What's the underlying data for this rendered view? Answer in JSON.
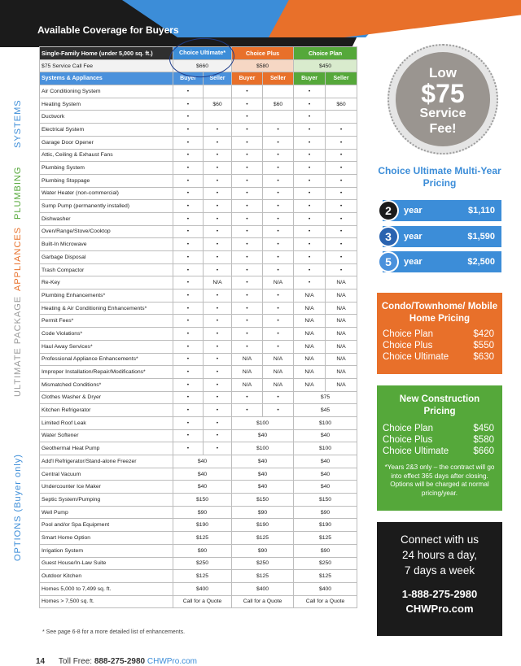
{
  "header": {
    "title": "Available Coverage for Buyers"
  },
  "side_labels": [
    "SYSTEMS",
    "PLUMBING",
    "APPLIANCES",
    "ULTIMATE PACKAGE",
    "OPTIONS (Buyer only)"
  ],
  "table": {
    "title_cell": "Single-Family Home (under 5,000 sq. ft.)",
    "plans": [
      "Choice Ultimate*",
      "Choice Plus",
      "Choice Plan"
    ],
    "fee_label": "$75 Service Call Fee",
    "fees": [
      "$660",
      "$580",
      "$450"
    ],
    "section_label": "Systems & Appliances",
    "col_headers": [
      "Buyer",
      "Seller",
      "Buyer",
      "Seller",
      "Buyer",
      "Seller"
    ],
    "rows": [
      {
        "label": "Air Conditioning System",
        "c": [
          "•",
          "",
          "•",
          "",
          "•",
          ""
        ]
      },
      {
        "label": "Heating System",
        "c": [
          "•",
          "$60",
          "•",
          "$60",
          "•",
          "$60"
        ]
      },
      {
        "label": "Ductwork",
        "c": [
          "•",
          "",
          "•",
          "",
          "•",
          ""
        ]
      },
      {
        "label": "Electrical System",
        "c": [
          "•",
          "•",
          "•",
          "•",
          "•",
          "•"
        ]
      },
      {
        "label": "Garage Door Opener",
        "c": [
          "•",
          "•",
          "•",
          "•",
          "•",
          "•"
        ]
      },
      {
        "label": "Attic, Ceiling & Exhaust Fans",
        "c": [
          "•",
          "•",
          "•",
          "•",
          "•",
          "•"
        ]
      },
      {
        "label": "Plumbing System",
        "c": [
          "•",
          "•",
          "•",
          "•",
          "•",
          "•"
        ]
      },
      {
        "label": "Plumbing Stoppage",
        "c": [
          "•",
          "•",
          "•",
          "•",
          "•",
          "•"
        ]
      },
      {
        "label": "Water Heater (non-commercial)",
        "c": [
          "•",
          "•",
          "•",
          "•",
          "•",
          "•"
        ]
      },
      {
        "label": "Sump Pump (permanently installed)",
        "c": [
          "•",
          "•",
          "•",
          "•",
          "•",
          "•"
        ]
      },
      {
        "label": "Dishwasher",
        "c": [
          "•",
          "•",
          "•",
          "•",
          "•",
          "•"
        ]
      },
      {
        "label": "Oven/Range/Stove/Cooktop",
        "c": [
          "•",
          "•",
          "•",
          "•",
          "•",
          "•"
        ]
      },
      {
        "label": "Built-In Microwave",
        "c": [
          "•",
          "•",
          "•",
          "•",
          "•",
          "•"
        ]
      },
      {
        "label": "Garbage Disposal",
        "c": [
          "•",
          "•",
          "•",
          "•",
          "•",
          "•"
        ]
      },
      {
        "label": "Trash Compactor",
        "c": [
          "•",
          "•",
          "•",
          "•",
          "•",
          "•"
        ]
      },
      {
        "label": "Re-Key",
        "c": [
          "•",
          "N/A",
          "•",
          "N/A",
          "•",
          "N/A"
        ]
      },
      {
        "label": "Plumbing Enhancements*",
        "c": [
          "•",
          "•",
          "•",
          "•",
          "N/A",
          "N/A"
        ]
      },
      {
        "label": "Heating & Air Conditioning Enhancements*",
        "c": [
          "•",
          "•",
          "•",
          "•",
          "N/A",
          "N/A"
        ]
      },
      {
        "label": "Permit Fees*",
        "c": [
          "•",
          "•",
          "•",
          "•",
          "N/A",
          "N/A"
        ]
      },
      {
        "label": "Code Violations*",
        "c": [
          "•",
          "•",
          "•",
          "•",
          "N/A",
          "N/A"
        ]
      },
      {
        "label": "Haul Away Services*",
        "c": [
          "•",
          "•",
          "•",
          "•",
          "N/A",
          "N/A"
        ]
      },
      {
        "label": "Professional Appliance Enhancements*",
        "c": [
          "•",
          "•",
          "N/A",
          "N/A",
          "N/A",
          "N/A"
        ]
      },
      {
        "label": "Improper Installation/Repair/Modifications*",
        "c": [
          "•",
          "•",
          "N/A",
          "N/A",
          "N/A",
          "N/A"
        ]
      },
      {
        "label": "Mismatched Conditions*",
        "c": [
          "•",
          "•",
          "N/A",
          "N/A",
          "N/A",
          "N/A"
        ]
      }
    ],
    "option_rows": [
      {
        "label": "Clothes Washer & Dryer",
        "u": [
          "•",
          "•"
        ],
        "p": [
          "•",
          "•"
        ],
        "c": "$75"
      },
      {
        "label": "Kitchen Refrigerator",
        "u": [
          "•",
          "•"
        ],
        "p": [
          "•",
          "•"
        ],
        "c": "$45"
      },
      {
        "label": "Limited Roof Leak",
        "u": [
          "•",
          "•"
        ],
        "p": "$100",
        "c": "$100"
      },
      {
        "label": "Water Softener",
        "u": [
          "•",
          "•"
        ],
        "p": "$40",
        "c": "$40"
      },
      {
        "label": "Geothermal Heat Pump",
        "u": [
          "•",
          "•"
        ],
        "p": "$100",
        "c": "$100"
      },
      {
        "label": "Add'l Refrigerator/Stand-alone Freezer",
        "u": "$40",
        "p": "$40",
        "c": "$40"
      },
      {
        "label": "Central Vacuum",
        "u": "$40",
        "p": "$40",
        "c": "$40"
      },
      {
        "label": "Undercounter Ice Maker",
        "u": "$40",
        "p": "$40",
        "c": "$40"
      },
      {
        "label": "Septic System/Pumping",
        "u": "$150",
        "p": "$150",
        "c": "$150"
      },
      {
        "label": "Well Pump",
        "u": "$90",
        "p": "$90",
        "c": "$90"
      },
      {
        "label": "Pool and/or Spa Equipment",
        "u": "$190",
        "p": "$190",
        "c": "$190"
      },
      {
        "label": "Smart Home Option",
        "u": "$125",
        "p": "$125",
        "c": "$125"
      },
      {
        "label": "Irrigation System",
        "u": "$90",
        "p": "$90",
        "c": "$90"
      },
      {
        "label": "Guest House/In-Law Suite",
        "u": "$250",
        "p": "$250",
        "c": "$250"
      },
      {
        "label": "Outdoor Kitchen",
        "u": "$125",
        "p": "$125",
        "c": "$125"
      },
      {
        "label": "Homes 5,000 to 7,499 sq. ft.",
        "u": "$400",
        "p": "$400",
        "c": "$400"
      },
      {
        "label": "Homes > 7,500 sq. ft.",
        "u": "Call for a Quote",
        "p": "Call for a Quote",
        "c": "Call for a Quote"
      }
    ]
  },
  "footnote": "* See page 6-8 for a more detailed list of enhancements.",
  "footer": {
    "page": "14",
    "tollfree": "Toll Free:",
    "phone": "888-275-2980",
    "url": "CHWPro.com"
  },
  "badge": {
    "l1": "Low",
    "l2": "$75",
    "l3": "Service",
    "l4": "Fee!"
  },
  "multi_year": {
    "title": "Choice Ultimate Multi-Year Pricing",
    "rows": [
      {
        "n": "2",
        "label": "year",
        "price": "$1,110"
      },
      {
        "n": "3",
        "label": "year",
        "price": "$1,590"
      },
      {
        "n": "5",
        "label": "year",
        "price": "$2,500"
      }
    ]
  },
  "condo": {
    "title": "Condo/Townhome/ Mobile Home Pricing",
    "rows": [
      {
        "name": "Choice Plan",
        "price": "$420"
      },
      {
        "name": "Choice Plus",
        "price": "$550"
      },
      {
        "name": "Choice Ultimate",
        "price": "$630"
      }
    ]
  },
  "new_construction": {
    "title": "New Construction Pricing",
    "rows": [
      {
        "name": "Choice Plan",
        "price": "$450"
      },
      {
        "name": "Choice Plus",
        "price": "$580"
      },
      {
        "name": "Choice Ultimate",
        "price": "$660"
      }
    ],
    "note": "*Years 2&3 only – the contract will go into effect 365 days after closing. Options will be charged at normal pricing/year."
  },
  "connect": {
    "lines": [
      "Connect with us",
      "24 hours a day,",
      "7 days a week"
    ],
    "phone": "1-888-275-2980",
    "web": "CHWPro.com"
  },
  "colors": {
    "blue": "#3c8dd8",
    "orange": "#e8702a",
    "green": "#55a83a",
    "black": "#1b1b1b",
    "gray": "#9a9590"
  }
}
